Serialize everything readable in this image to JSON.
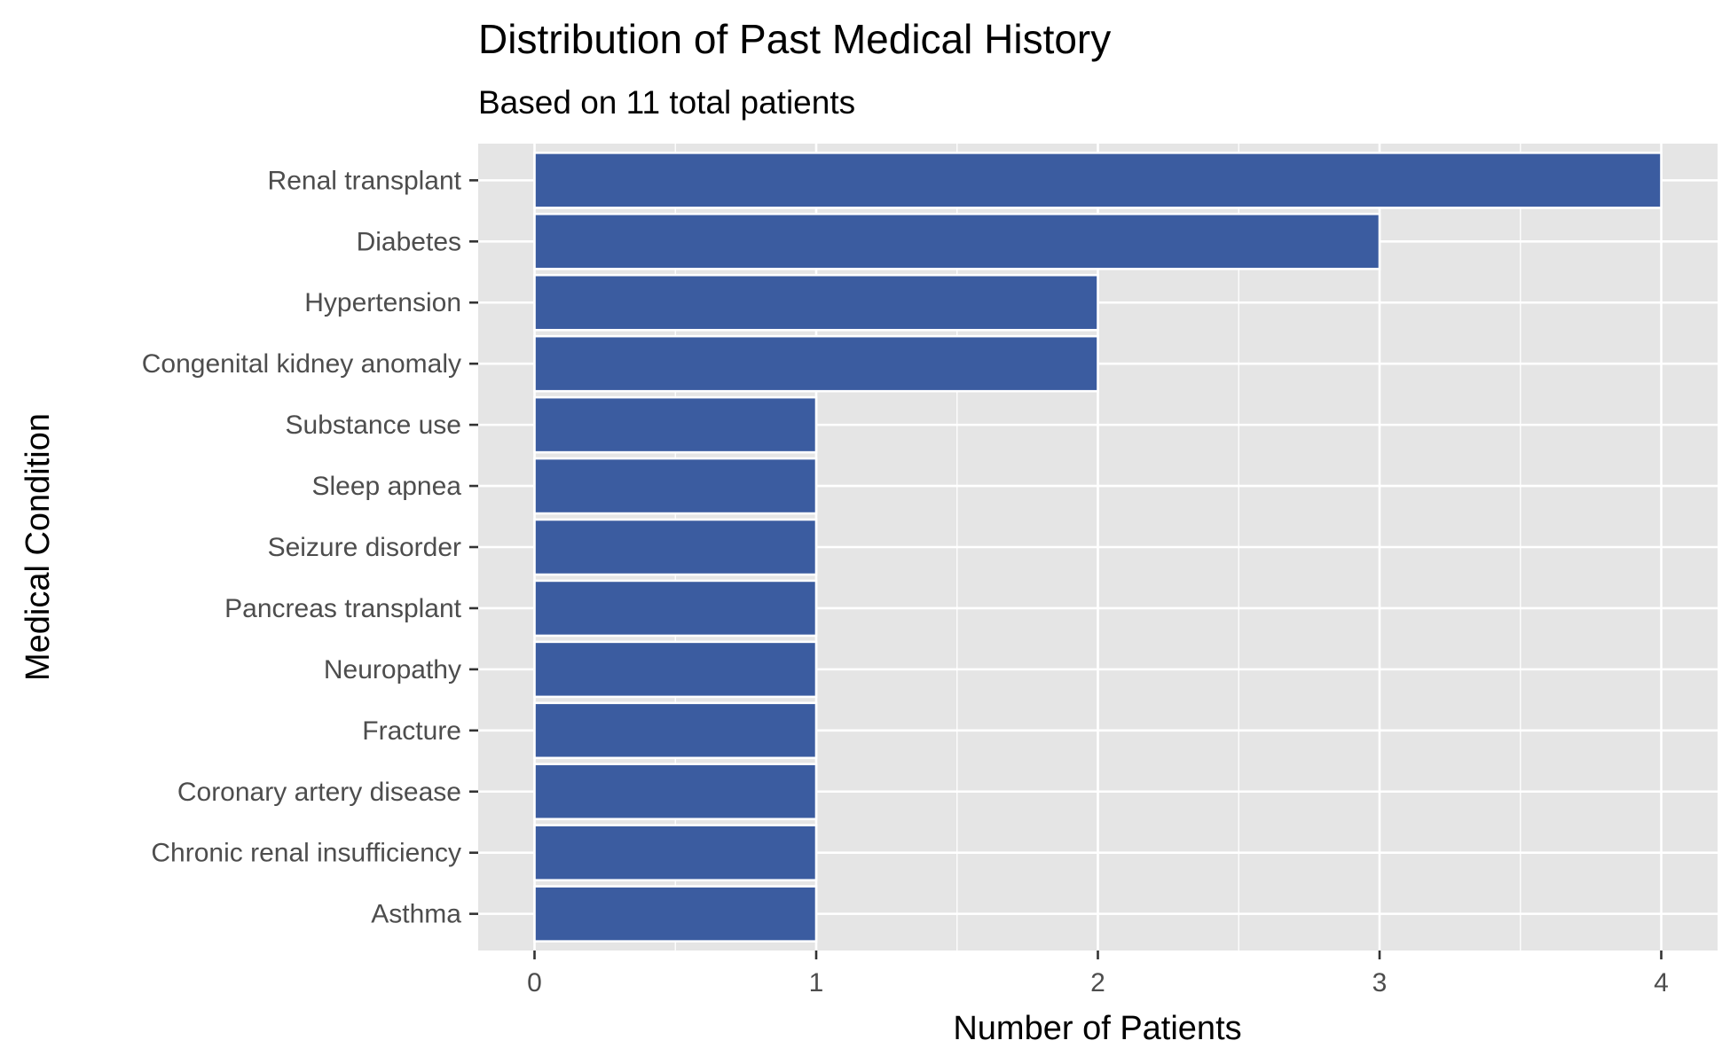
{
  "chart_data": {
    "type": "bar",
    "orientation": "horizontal",
    "title": "Distribution of Past Medical History",
    "subtitle": "Based on 11 total patients",
    "xlabel": "Number of Patients",
    "ylabel": "Medical Condition",
    "categories": [
      "Renal transplant",
      "Diabetes",
      "Hypertension",
      "Congenital kidney anomaly",
      "Substance use",
      "Sleep apnea",
      "Seizure disorder",
      "Pancreas transplant",
      "Neuropathy",
      "Fracture",
      "Coronary artery disease",
      "Chronic renal insufficiency",
      "Asthma"
    ],
    "values": [
      4,
      3,
      2,
      2,
      1,
      1,
      1,
      1,
      1,
      1,
      1,
      1,
      1
    ],
    "xlim": [
      -0.2,
      4.2
    ],
    "x_ticks": [
      0,
      1,
      2,
      3,
      4
    ],
    "x_tick_labels": [
      "0",
      "1",
      "2",
      "3",
      "4"
    ],
    "grid": true,
    "bar_color": "#3b5ca0",
    "panel_background": "#e5e5e5",
    "grid_color": "#ffffff"
  }
}
